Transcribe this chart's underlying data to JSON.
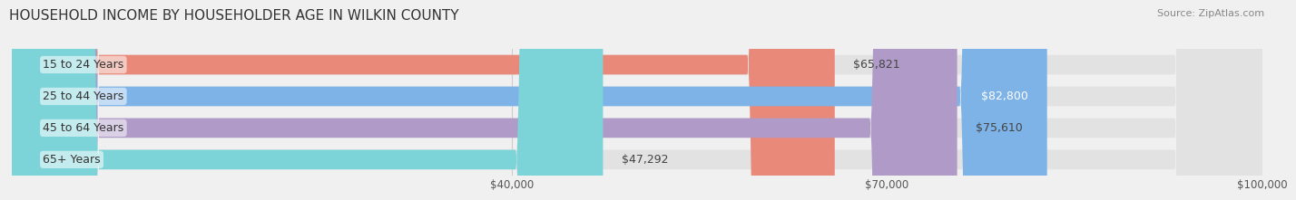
{
  "title": "HOUSEHOLD INCOME BY HOUSEHOLDER AGE IN WILKIN COUNTY",
  "source": "Source: ZipAtlas.com",
  "categories": [
    "15 to 24 Years",
    "25 to 44 Years",
    "45 to 64 Years",
    "65+ Years"
  ],
  "values": [
    65821,
    82800,
    75610,
    47292
  ],
  "bar_colors": [
    "#E8897A",
    "#7EB3E8",
    "#B09AC8",
    "#7DD4D8"
  ],
  "label_colors": [
    "#444444",
    "#ffffff",
    "#444444",
    "#444444"
  ],
  "bar_labels": [
    "$65,821",
    "$82,800",
    "$75,610",
    "$47,292"
  ],
  "background_color": "#f0f0f0",
  "bar_bg_color": "#e2e2e2",
  "xlim": [
    0,
    100000
  ],
  "xticks": [
    40000,
    70000,
    100000
  ],
  "xtick_labels": [
    "$40,000",
    "$70,000",
    "$100,000"
  ],
  "title_fontsize": 11,
  "source_fontsize": 8,
  "label_fontsize": 9,
  "category_fontsize": 9,
  "rounding_size": 7000
}
